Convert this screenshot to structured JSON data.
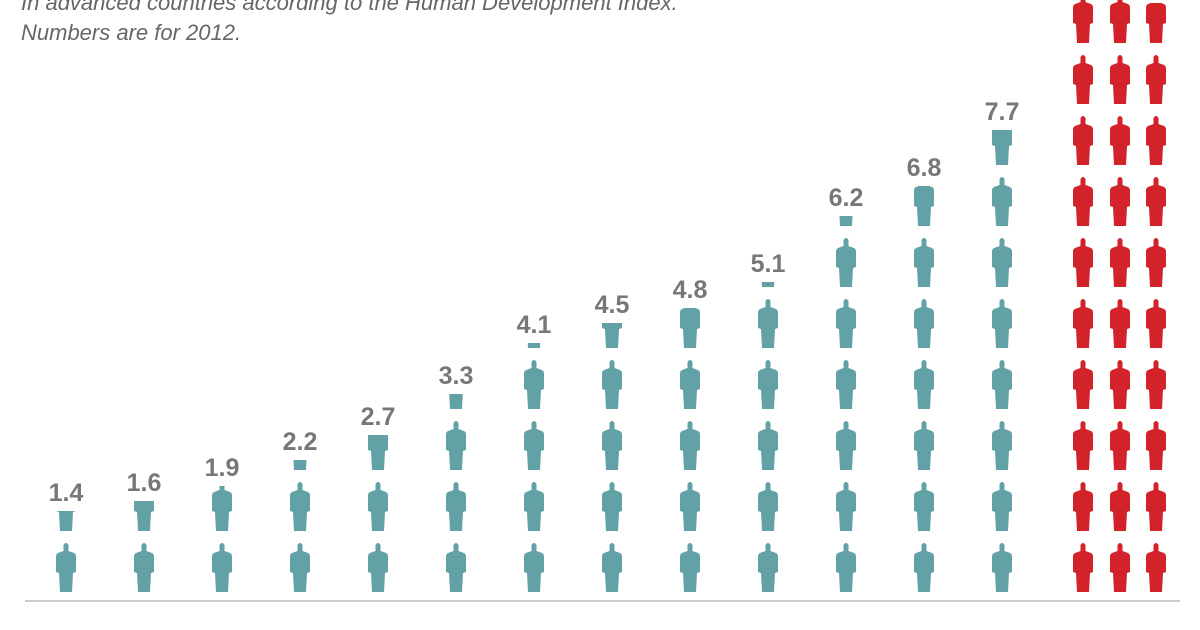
{
  "subtitle": {
    "line1": "In advanced countries according to the Human Development Index.",
    "line2": "Numbers are for 2012."
  },
  "chart_data": {
    "type": "bar",
    "style": "isotype pictogram (one figure = 1 unit)",
    "series": [
      {
        "color": "#62a1a5",
        "values": [
          1.4,
          1.6,
          1.9,
          2.2,
          2.7,
          3.3,
          4.1,
          4.5,
          4.8,
          5.1,
          6.2,
          6.8,
          7.7
        ],
        "labels": [
          "1.4",
          "1.6",
          "1.9",
          "2.2",
          "2.7",
          "3.3",
          "4.1",
          "4.5",
          "4.8",
          "5.1",
          "6.2",
          "6.8",
          "7.7"
        ]
      },
      {
        "color": "#d2232a",
        "values": [
          29.8
        ],
        "note": "highlighted column extends beyond the top of the image"
      }
    ],
    "grid": false,
    "axis_color": "#cccccc"
  }
}
